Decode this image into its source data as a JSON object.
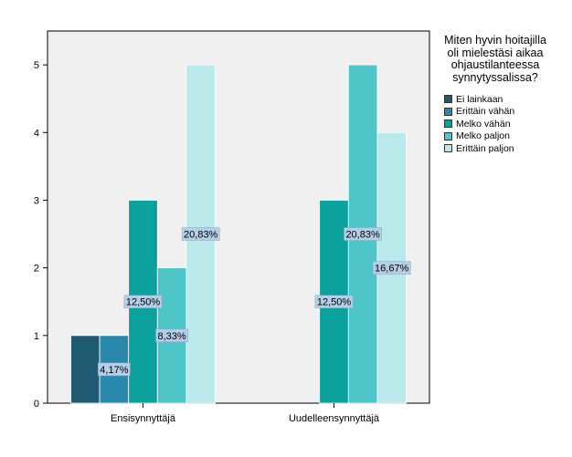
{
  "chart_data": {
    "type": "bar",
    "categories": [
      "Ensisynnyttäjä",
      "Uudelleensynnyttäjä"
    ],
    "legend_title": "Miten hyvin hoitajilla oli mielestäsi aikaa ohjaustilanteessa synnytyssalissa?",
    "series": [
      {
        "name": "Ei lainkaan",
        "color": "#1f5b73",
        "values": [
          1,
          0
        ],
        "labels": [
          "",
          ""
        ]
      },
      {
        "name": "Erittäin vähän",
        "color": "#2a89ad",
        "values": [
          1,
          0
        ],
        "labels": [
          "4,17%",
          ""
        ]
      },
      {
        "name": "Melko vähän",
        "color": "#0aa19f",
        "values": [
          3,
          3
        ],
        "labels": [
          "12,50%",
          "12,50%"
        ]
      },
      {
        "name": "Melko paljon",
        "color": "#4ec6c9",
        "values": [
          2,
          5
        ],
        "labels": [
          "8,33%",
          "20,83%"
        ]
      },
      {
        "name": "Erittäin paljon",
        "color": "#b9e9ea",
        "values": [
          5,
          4
        ],
        "labels": [
          "20,83%",
          "16,67%"
        ]
      }
    ],
    "ylim": [
      0,
      5.5
    ],
    "yticks": [
      0,
      1,
      2,
      3,
      4,
      5
    ],
    "xlabel": "",
    "ylabel": "",
    "grid": false,
    "legend_position": "right"
  }
}
